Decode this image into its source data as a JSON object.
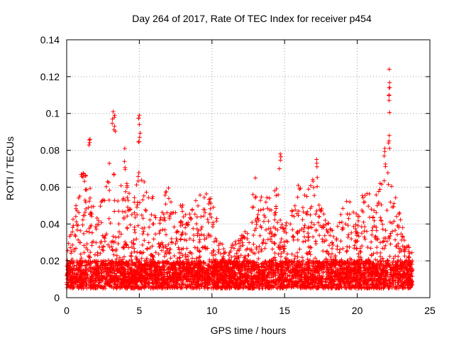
{
  "chart_data": {
    "type": "scatter",
    "title": "Day 264 of 2017, Rate Of TEC Index for receiver p454",
    "xlabel": "GPS time / hours",
    "ylabel": "ROTI / TECUs",
    "xlim": [
      0,
      25
    ],
    "ylim": [
      0,
      0.14
    ],
    "x_ticks": [
      "0",
      "5",
      "10",
      "15",
      "20",
      "25"
    ],
    "y_ticks": [
      "0",
      "0.02",
      "0.04",
      "0.06",
      "0.08",
      "0.1",
      "0.12",
      "0.14"
    ],
    "grid": true,
    "marker": "+",
    "color": "#ff0000",
    "x_range_observed": [
      0,
      23.8
    ],
    "baseline_band": [
      0.005,
      0.02
    ],
    "envelope": {
      "x": [
        0,
        0.5,
        1,
        1.5,
        2,
        2.5,
        3,
        3.3,
        3.6,
        4,
        4.5,
        5,
        5.5,
        6,
        6.5,
        7,
        7.5,
        8,
        8.5,
        9,
        9.5,
        10,
        10.5,
        11,
        11.5,
        12,
        12.5,
        13,
        13.5,
        14,
        14.5,
        15,
        15.5,
        16,
        16.5,
        17,
        17.5,
        18,
        18.5,
        19,
        19.5,
        20,
        20.5,
        21,
        21.5,
        22,
        22.5,
        23,
        23.5,
        23.8
      ],
      "y": [
        0.025,
        0.045,
        0.07,
        0.065,
        0.05,
        0.055,
        0.08,
        0.075,
        0.06,
        0.07,
        0.05,
        0.07,
        0.06,
        0.055,
        0.045,
        0.065,
        0.05,
        0.055,
        0.045,
        0.055,
        0.06,
        0.055,
        0.04,
        0.025,
        0.03,
        0.035,
        0.04,
        0.07,
        0.06,
        0.055,
        0.06,
        0.04,
        0.05,
        0.065,
        0.055,
        0.07,
        0.05,
        0.045,
        0.04,
        0.05,
        0.055,
        0.045,
        0.06,
        0.055,
        0.06,
        0.075,
        0.06,
        0.045,
        0.03,
        0.025
      ]
    },
    "peaks": [
      {
        "x": 1.6,
        "y": 0.086
      },
      {
        "x": 3.2,
        "y": 0.101
      },
      {
        "x": 3.3,
        "y": 0.099
      },
      {
        "x": 5.0,
        "y": 0.099
      },
      {
        "x": 5.0,
        "y": 0.094
      },
      {
        "x": 4.0,
        "y": 0.081
      },
      {
        "x": 14.7,
        "y": 0.078
      },
      {
        "x": 17.2,
        "y": 0.075
      },
      {
        "x": 22.2,
        "y": 0.124
      },
      {
        "x": 22.2,
        "y": 0.11
      },
      {
        "x": 22.2,
        "y": 0.088
      },
      {
        "x": 21.9,
        "y": 0.081
      }
    ]
  }
}
